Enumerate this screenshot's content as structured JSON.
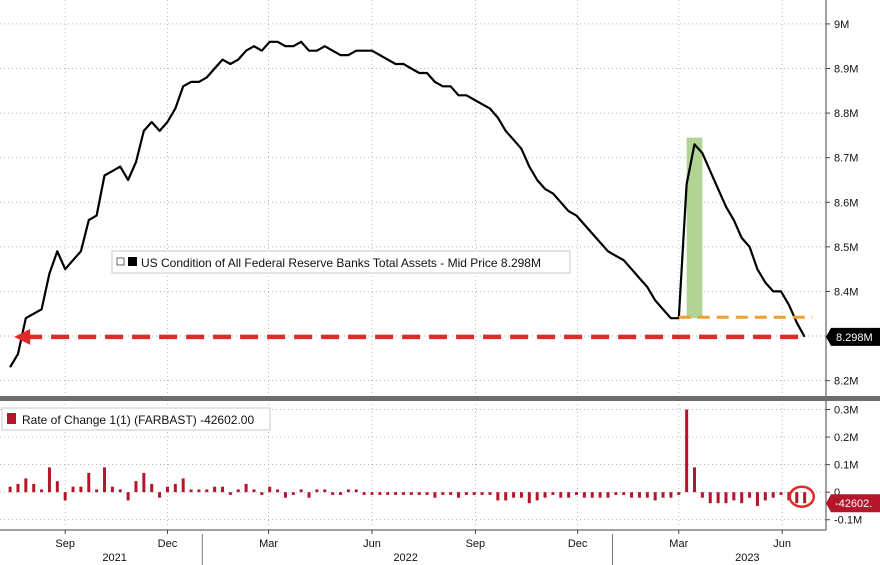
{
  "chart_data": [
    {
      "type": "line",
      "legend": {
        "text": "US Condition of All Federal Reserve Banks Total Assets - Mid Price 8.298M",
        "marker_color": "#000000"
      },
      "y_unit": "M",
      "ylim": [
        8.17,
        9.02
      ],
      "yticks": [
        "9M",
        "8.9M",
        "8.8M",
        "8.7M",
        "8.6M",
        "8.5M",
        "8.4M",
        "8.3M",
        "8.2M"
      ],
      "last_value_label": "8.298M",
      "series": [
        {
          "color": "#000000",
          "x": [
            "2021-07-14",
            "2021-07-21",
            "2021-07-28",
            "2021-08-04",
            "2021-08-11",
            "2021-08-18",
            "2021-08-25",
            "2021-09-01",
            "2021-09-08",
            "2021-09-15",
            "2021-09-22",
            "2021-09-29",
            "2021-10-06",
            "2021-10-13",
            "2021-10-20",
            "2021-10-27",
            "2021-11-03",
            "2021-11-10",
            "2021-11-17",
            "2021-11-24",
            "2021-12-01",
            "2021-12-08",
            "2021-12-15",
            "2021-12-22",
            "2021-12-29",
            "2022-01-05",
            "2022-01-12",
            "2022-01-19",
            "2022-01-26",
            "2022-02-02",
            "2022-02-09",
            "2022-02-16",
            "2022-02-23",
            "2022-03-02",
            "2022-03-09",
            "2022-03-16",
            "2022-03-23",
            "2022-03-30",
            "2022-04-06",
            "2022-04-13",
            "2022-04-20",
            "2022-04-27",
            "2022-05-04",
            "2022-05-11",
            "2022-05-18",
            "2022-05-25",
            "2022-06-01",
            "2022-06-08",
            "2022-06-15",
            "2022-06-22",
            "2022-06-29",
            "2022-07-06",
            "2022-07-13",
            "2022-07-20",
            "2022-07-27",
            "2022-08-03",
            "2022-08-10",
            "2022-08-17",
            "2022-08-24",
            "2022-08-31",
            "2022-09-07",
            "2022-09-14",
            "2022-09-21",
            "2022-09-28",
            "2022-10-05",
            "2022-10-12",
            "2022-10-19",
            "2022-10-26",
            "2022-11-02",
            "2022-11-09",
            "2022-11-16",
            "2022-11-23",
            "2022-11-30",
            "2022-12-07",
            "2022-12-14",
            "2022-12-21",
            "2022-12-28",
            "2023-01-04",
            "2023-01-11",
            "2023-01-18",
            "2023-01-25",
            "2023-02-01",
            "2023-02-08",
            "2023-02-15",
            "2023-02-22",
            "2023-03-01",
            "2023-03-08",
            "2023-03-15",
            "2023-03-22",
            "2023-03-29",
            "2023-04-05",
            "2023-04-12",
            "2023-04-19",
            "2023-04-26",
            "2023-05-03",
            "2023-05-10",
            "2023-05-17",
            "2023-05-24",
            "2023-05-31",
            "2023-06-07",
            "2023-06-14",
            "2023-06-21"
          ],
          "values": [
            8.23,
            8.26,
            8.34,
            8.35,
            8.36,
            8.44,
            8.49,
            8.45,
            8.47,
            8.49,
            8.56,
            8.57,
            8.66,
            8.67,
            8.68,
            8.65,
            8.69,
            8.76,
            8.78,
            8.76,
            8.78,
            8.81,
            8.86,
            8.87,
            8.87,
            8.88,
            8.9,
            8.92,
            8.91,
            8.92,
            8.94,
            8.95,
            8.94,
            8.96,
            8.96,
            8.95,
            8.95,
            8.96,
            8.94,
            8.94,
            8.95,
            8.94,
            8.93,
            8.93,
            8.94,
            8.94,
            8.94,
            8.93,
            8.92,
            8.91,
            8.91,
            8.9,
            8.89,
            8.89,
            8.87,
            8.86,
            8.86,
            8.84,
            8.84,
            8.83,
            8.82,
            8.81,
            8.79,
            8.76,
            8.74,
            8.72,
            8.68,
            8.65,
            8.63,
            8.62,
            8.6,
            8.58,
            8.57,
            8.55,
            8.53,
            8.51,
            8.49,
            8.48,
            8.47,
            8.45,
            8.43,
            8.41,
            8.38,
            8.36,
            8.34,
            8.34,
            8.64,
            8.73,
            8.71,
            8.67,
            8.63,
            8.59,
            8.56,
            8.52,
            8.5,
            8.45,
            8.42,
            8.4,
            8.4,
            8.37,
            8.33,
            8.298
          ]
        }
      ]
    },
    {
      "type": "bar",
      "legend": {
        "text": "Rate of Change 1(1) (FARBAST) -42602.00",
        "marker_color": "#b5152b"
      },
      "y_unit": "M",
      "ylim": [
        -0.13,
        0.32
      ],
      "yticks": [
        "0.3M",
        "0.2M",
        "0.1M",
        "0",
        "-0.1M"
      ],
      "last_value_label": "-42602.",
      "series": [
        {
          "color": "#b5152b",
          "x_ref": "same as line series",
          "values": [
            0.02,
            0.03,
            0.05,
            0.03,
            0.01,
            0.09,
            0.04,
            -0.03,
            0.02,
            0.02,
            0.07,
            0.01,
            0.09,
            0.02,
            0.01,
            -0.03,
            0.04,
            0.07,
            0.03,
            -0.02,
            0.02,
            0.03,
            0.05,
            0.01,
            0.01,
            0.01,
            0.02,
            0.02,
            -0.01,
            0.01,
            0.03,
            0.01,
            -0.01,
            0.02,
            0.01,
            -0.02,
            -0.01,
            0.01,
            -0.02,
            0.01,
            0.01,
            -0.01,
            -0.01,
            0.01,
            0.01,
            -0.01,
            -0.01,
            -0.01,
            -0.01,
            -0.01,
            -0.01,
            -0.01,
            -0.01,
            -0.01,
            -0.02,
            -0.01,
            -0.01,
            -0.02,
            -0.01,
            -0.01,
            -0.01,
            -0.01,
            -0.03,
            -0.03,
            -0.02,
            -0.02,
            -0.04,
            -0.03,
            -0.02,
            -0.01,
            -0.02,
            -0.02,
            -0.01,
            -0.02,
            -0.02,
            -0.02,
            -0.02,
            -0.01,
            -0.01,
            -0.02,
            -0.02,
            -0.02,
            -0.03,
            -0.02,
            -0.02,
            -0.01,
            0.3,
            0.09,
            -0.02,
            -0.04,
            -0.04,
            -0.04,
            -0.03,
            -0.04,
            -0.02,
            -0.05,
            -0.03,
            -0.02,
            -0.01,
            -0.03,
            -0.04,
            -0.04
          ]
        }
      ]
    }
  ],
  "x_axis": {
    "x_min": "2021-07-05",
    "x_max": "2023-07-10",
    "month_ticks": [
      {
        "label": "Sep",
        "date": "2021-09-01"
      },
      {
        "label": "Dec",
        "date": "2021-12-01"
      },
      {
        "label": "Mar",
        "date": "2022-03-01"
      },
      {
        "label": "Jun",
        "date": "2022-06-01"
      },
      {
        "label": "Sep",
        "date": "2022-09-01"
      },
      {
        "label": "Dec",
        "date": "2022-12-01"
      },
      {
        "label": "Mar",
        "date": "2023-03-01"
      },
      {
        "label": "Jun",
        "date": "2023-06-01"
      }
    ],
    "year_labels": [
      {
        "label": "2021",
        "date": "2021-10-15"
      },
      {
        "label": "2022",
        "date": "2022-07-01"
      },
      {
        "label": "2023",
        "date": "2023-05-01"
      }
    ],
    "year_dividers": [
      "2022-01-01",
      "2023-01-01"
    ]
  },
  "annotations": {
    "highlight": {
      "color": "#a9cf8a",
      "from": "2023-03-08",
      "to": "2023-03-22",
      "y_range": [
        8.34,
        8.745
      ]
    },
    "orange_level": {
      "color": "#f0a030",
      "from": "2023-03-01",
      "to": "2023-06-28",
      "y": 8.342
    },
    "red_arrow": {
      "color": "#e02a2a",
      "from": "2023-06-21",
      "to": "2021-07-14",
      "y": 8.298
    },
    "last_bar_circle": {
      "color": "#e02a2a",
      "date": "2023-06-14"
    }
  }
}
